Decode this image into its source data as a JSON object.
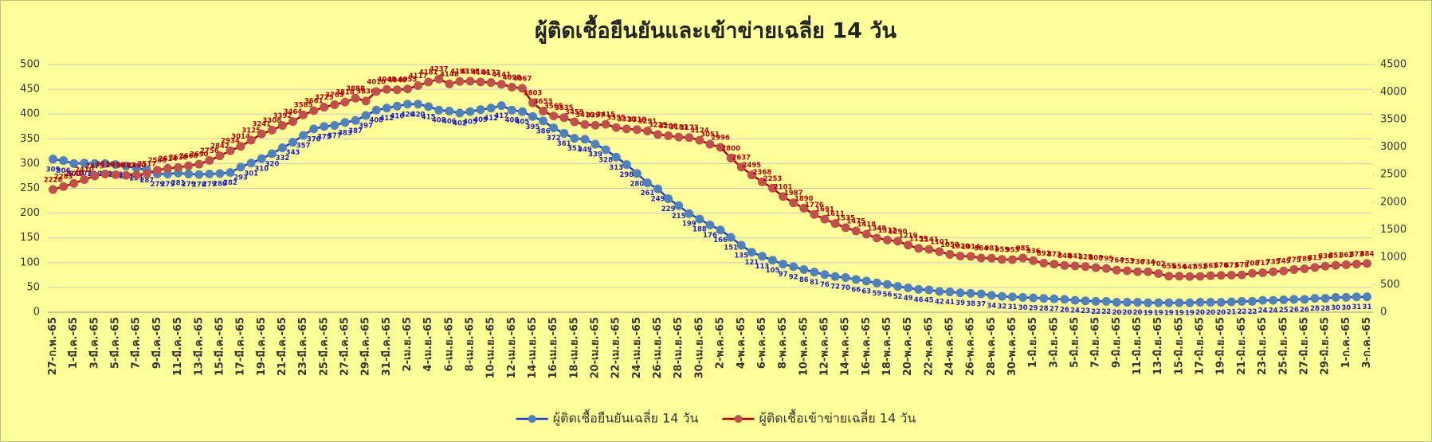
{
  "chart_data": {
    "type": "line",
    "title": "ผู้ติดเชื้อยืนยันและเข้าข่ายเฉลี่ย 14 วัน",
    "categories": [
      "27-ก.พ.-65",
      null,
      "1-มี.ค.-65",
      null,
      "3-มี.ค.-65",
      null,
      "5-มี.ค.-65",
      null,
      "7-มี.ค.-65",
      null,
      "9-มี.ค.-65",
      null,
      "11-มี.ค.-65",
      null,
      "13-มี.ค.-65",
      null,
      "15-มี.ค.-65",
      null,
      "17-มี.ค.-65",
      null,
      "19-มี.ค.-65",
      null,
      "21-มี.ค.-65",
      null,
      "23-มี.ค.-65",
      null,
      "25-มี.ค.-65",
      null,
      "27-มี.ค.-65",
      null,
      "29-มี.ค.-65",
      null,
      "31-มี.ค.-65",
      null,
      "2-เม.ย.-65",
      null,
      "4-เม.ย.-65",
      null,
      "6-เม.ย.-65",
      null,
      "8-เม.ย.-65",
      null,
      "10-เม.ย.-65",
      null,
      "12-เม.ย.-65",
      null,
      "14-เม.ย.-65",
      null,
      "16-เม.ย.-65",
      null,
      "18-เม.ย.-65",
      null,
      "20-เม.ย.-65",
      null,
      "22-เม.ย.-65",
      null,
      "24-เม.ย.-65",
      null,
      "26-เม.ย.-65",
      null,
      "28-เม.ย.-65",
      null,
      "30-เม.ย.-65",
      null,
      "2-พ.ค.-65",
      null,
      "4-พ.ค.-65",
      null,
      "6-พ.ค.-65",
      null,
      "8-พ.ค.-65",
      null,
      "10-พ.ค.-65",
      null,
      "12-พ.ค.-65",
      null,
      "14-พ.ค.-65",
      null,
      "16-พ.ค.-65",
      null,
      "18-พ.ค.-65",
      null,
      "20-พ.ค.-65",
      null,
      "22-พ.ค.-65",
      null,
      "24-พ.ค.-65",
      null,
      "26-พ.ค.-65",
      null,
      "28-พ.ค.-65",
      null,
      "30-พ.ค.-65",
      null,
      "1-มิ.ย.-65",
      null,
      "3-มิ.ย.-65",
      null,
      "5-มิ.ย.-65",
      null,
      "7-มิ.ย.-65",
      null,
      "9-มิ.ย.-65",
      null,
      "11-มิ.ย.-65",
      null,
      "13-มิ.ย.-65",
      null,
      "15-มิ.ย.-65",
      null,
      "17-มิ.ย.-65",
      null,
      "19-มิ.ย.-65",
      null,
      "21-มิ.ย.-65",
      null,
      "23-มิ.ย.-65",
      null,
      "25-มิ.ย.-65",
      null,
      "27-มิ.ย.-65",
      null,
      "29-มิ.ย.-65",
      null,
      "1-ก.ค.-65",
      null,
      "3-ก.ค.-65"
    ],
    "series": [
      {
        "name": "ผู้ติดเชื้อยืนยันเฉลี่ย 14 วัน",
        "color": "#4f81bd",
        "line_color": "#1f3fcc",
        "label_color": "#1a1acc",
        "values": [
          309,
          306,
          300,
          301,
          300,
          300,
          298,
          295,
          291,
          287,
          279,
          279,
          281,
          279,
          278,
          279,
          280,
          282,
          293,
          301,
          310,
          320,
          332,
          343,
          357,
          370,
          375,
          377,
          383,
          387,
          397,
          408,
          412,
          416,
          420,
          420,
          415,
          408,
          406,
          402,
          405,
          409,
          412,
          417,
          408,
          405,
          395,
          386,
          372,
          361,
          351,
          349,
          339,
          328,
          313,
          298,
          280,
          261,
          249,
          229,
          215,
          199,
          188,
          176,
          166,
          151,
          135,
          121,
          113,
          105,
          97,
          92,
          86,
          81,
          76,
          72,
          70,
          66,
          63,
          59,
          56,
          52,
          49,
          46,
          45,
          42,
          41,
          39,
          38,
          37,
          34,
          32,
          31,
          30,
          29,
          28,
          27,
          26,
          24,
          23,
          22,
          22,
          20,
          20,
          20,
          19,
          19,
          19,
          19,
          19,
          20,
          20,
          20,
          21,
          22,
          22,
          24,
          24,
          25,
          26,
          26,
          28,
          28,
          30,
          30,
          31,
          31
        ]
      },
      {
        "name": "ผู้ติดเชื้อเข้าข่ายเฉลี่ย 14 วัน",
        "color": "#c0504d",
        "line_color": "#b00000",
        "label_color": "#b00000",
        "axis": "y2",
        "values": [
          2228,
          2283,
          2340,
          2410,
          2475,
          2510,
          2498,
          2487,
          2490,
          2517,
          2580,
          2614,
          2630,
          2660,
          2690,
          2756,
          2842,
          2934,
          3014,
          3125,
          3241,
          3308,
          3392,
          3464,
          3585,
          3661,
          3725,
          3769,
          3818,
          3888,
          3836,
          4010,
          4048,
          4040,
          4055,
          4117,
          4181,
          4237,
          4148,
          4193,
          4196,
          4184,
          4172,
          4141,
          4090,
          4067,
          3803,
          3653,
          3565,
          3535,
          3459,
          3410,
          3397,
          3415,
          3355,
          3330,
          3318,
          3291,
          3229,
          3206,
          3181,
          3173,
          3124,
          3051,
          2996,
          2800,
          2637,
          2495,
          2368,
          2253,
          2101,
          1987,
          1890,
          1776,
          1691,
          1611,
          1535,
          1475,
          1418,
          1348,
          1312,
          1290,
          1219,
          1159,
          1141,
          1101,
          1050,
          1020,
          1014,
          984,
          981,
          959,
          955,
          985,
          936,
          892,
          873,
          848,
          841,
          828,
          808,
          795,
          764,
          753,
          736,
          734,
          702,
          655,
          654,
          647,
          652,
          663,
          670,
          673,
          678,
          708,
          717,
          735,
          749,
          775,
          789,
          813,
          836,
          851,
          862,
          873,
          884
        ]
      }
    ],
    "ylim": [
      0,
      500
    ],
    "yticks": [
      0,
      50,
      100,
      150,
      200,
      250,
      300,
      350,
      400,
      450,
      500
    ],
    "y2lim": [
      0,
      4500
    ],
    "y2ticks": [
      0,
      500,
      1000,
      1500,
      2000,
      2500,
      3000,
      3500,
      4000,
      4500
    ],
    "grid": true,
    "legend": "bottom"
  }
}
